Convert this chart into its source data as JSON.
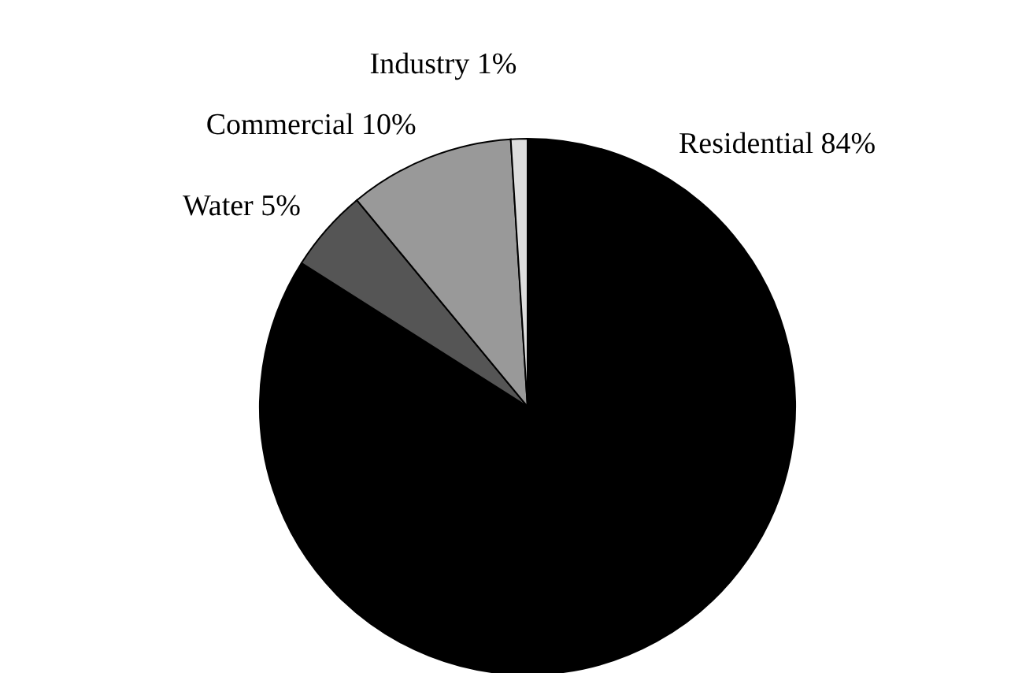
{
  "chart_data": {
    "type": "pie",
    "categories": [
      "Residential",
      "Water",
      "Commercial",
      "Industry"
    ],
    "values": [
      84,
      5,
      10,
      1
    ],
    "value_labels": [
      "84%",
      "5%",
      "10%",
      "1%"
    ],
    "colors": [
      "#000000",
      "#555555",
      "#999999",
      "#dddddd"
    ],
    "legend": false
  }
}
